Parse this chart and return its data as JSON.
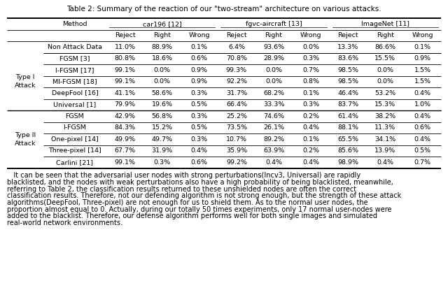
{
  "title": "Table 2: Summary of the reaction of our \"two-stream\" architecture on various attacks.",
  "rows": [
    [
      "Non Attack Data",
      "11.0%",
      "88.9%",
      "0.1%",
      "6.4%",
      "93.6%",
      "0.0%",
      "13.3%",
      "86.6%",
      "0.1%"
    ],
    [
      "FGSM [3]",
      "80.8%",
      "18.6%",
      "0.6%",
      "70.8%",
      "28.9%",
      "0.3%",
      "83.6%",
      "15.5%",
      "0.9%"
    ],
    [
      "I-FGSM [17]",
      "99.1%",
      "0.0%",
      "0.9%",
      "99.3%",
      "0.0%",
      "0.7%",
      "98.5%",
      "0.0%",
      "1.5%"
    ],
    [
      "MI-FGSM [18]",
      "99.1%",
      "0.0%",
      "0.9%",
      "92.2%",
      "0.0%",
      "0.8%",
      "98.5%",
      "0.0%",
      "1.5%"
    ],
    [
      "DeepFool [16]",
      "41.1%",
      "58.6%",
      "0.3%",
      "31.7%",
      "68.2%",
      "0.1%",
      "46.4%",
      "53.2%",
      "0.4%"
    ],
    [
      "Universal [1]",
      "79.9%",
      "19.6%",
      "0.5%",
      "66.4%",
      "33.3%",
      "0.3%",
      "83.7%",
      "15.3%",
      "1.0%"
    ],
    [
      "FGSM",
      "42.9%",
      "56.8%",
      "0.3%",
      "25.2%",
      "74.6%",
      "0.2%",
      "61.4%",
      "38.2%",
      "0.4%"
    ],
    [
      "I-FGSM",
      "84.3%",
      "15.2%",
      "0.5%",
      "73.5%",
      "26.1%",
      "0.4%",
      "88.1%",
      "11.3%",
      "0.6%"
    ],
    [
      "One-pixel [14]",
      "49.9%",
      "49.7%",
      "0.3%",
      "10.7%",
      "89.2%",
      "0.1%",
      "65.5%",
      "34.1%",
      "0.4%"
    ],
    [
      "Three-pixel [14]",
      "67.7%",
      "31.9%",
      "0.4%",
      "35.9%",
      "63.9%",
      "0.2%",
      "85.6%",
      "13.9%",
      "0.5%"
    ],
    [
      "Carlini [21]",
      "99.1%",
      "0.3%",
      "0.6%",
      "99.2%",
      "0.4%",
      "0.4%",
      "98.9%",
      "0.4%",
      "0.7%"
    ]
  ],
  "caption_lines": [
    "   It can be seen that the adversarial user nodes with strong perturbations(Incv3, Universal) are rapidly",
    "blacklisted, and the nodes with weak perturbations also have a high probability of being blacklisted, meanwhile,",
    "referring to Table 2, the classification results returned to these unshielded nodes are often the correct",
    "classification results. Therefore, not our defending algorithm is not strong enough, but the strength of these attack",
    "algorithms(DeepFool, Three-pixel) are not enough for us to shield them. As to the normal user nodes, the",
    "proportion almost equal to 0. Actually, during our totally 50 times experiments, only 17 normal user-nodes were",
    "added to the blacklist. Therefore, our defense algorithm performs well for both single images and simulated",
    "real-world network environments."
  ],
  "bg_color": "#ffffff",
  "text_color": "#000000",
  "line_color": "#000000",
  "title_fontsize": 7.5,
  "table_fontsize": 6.8,
  "caption_fontsize": 7.0
}
